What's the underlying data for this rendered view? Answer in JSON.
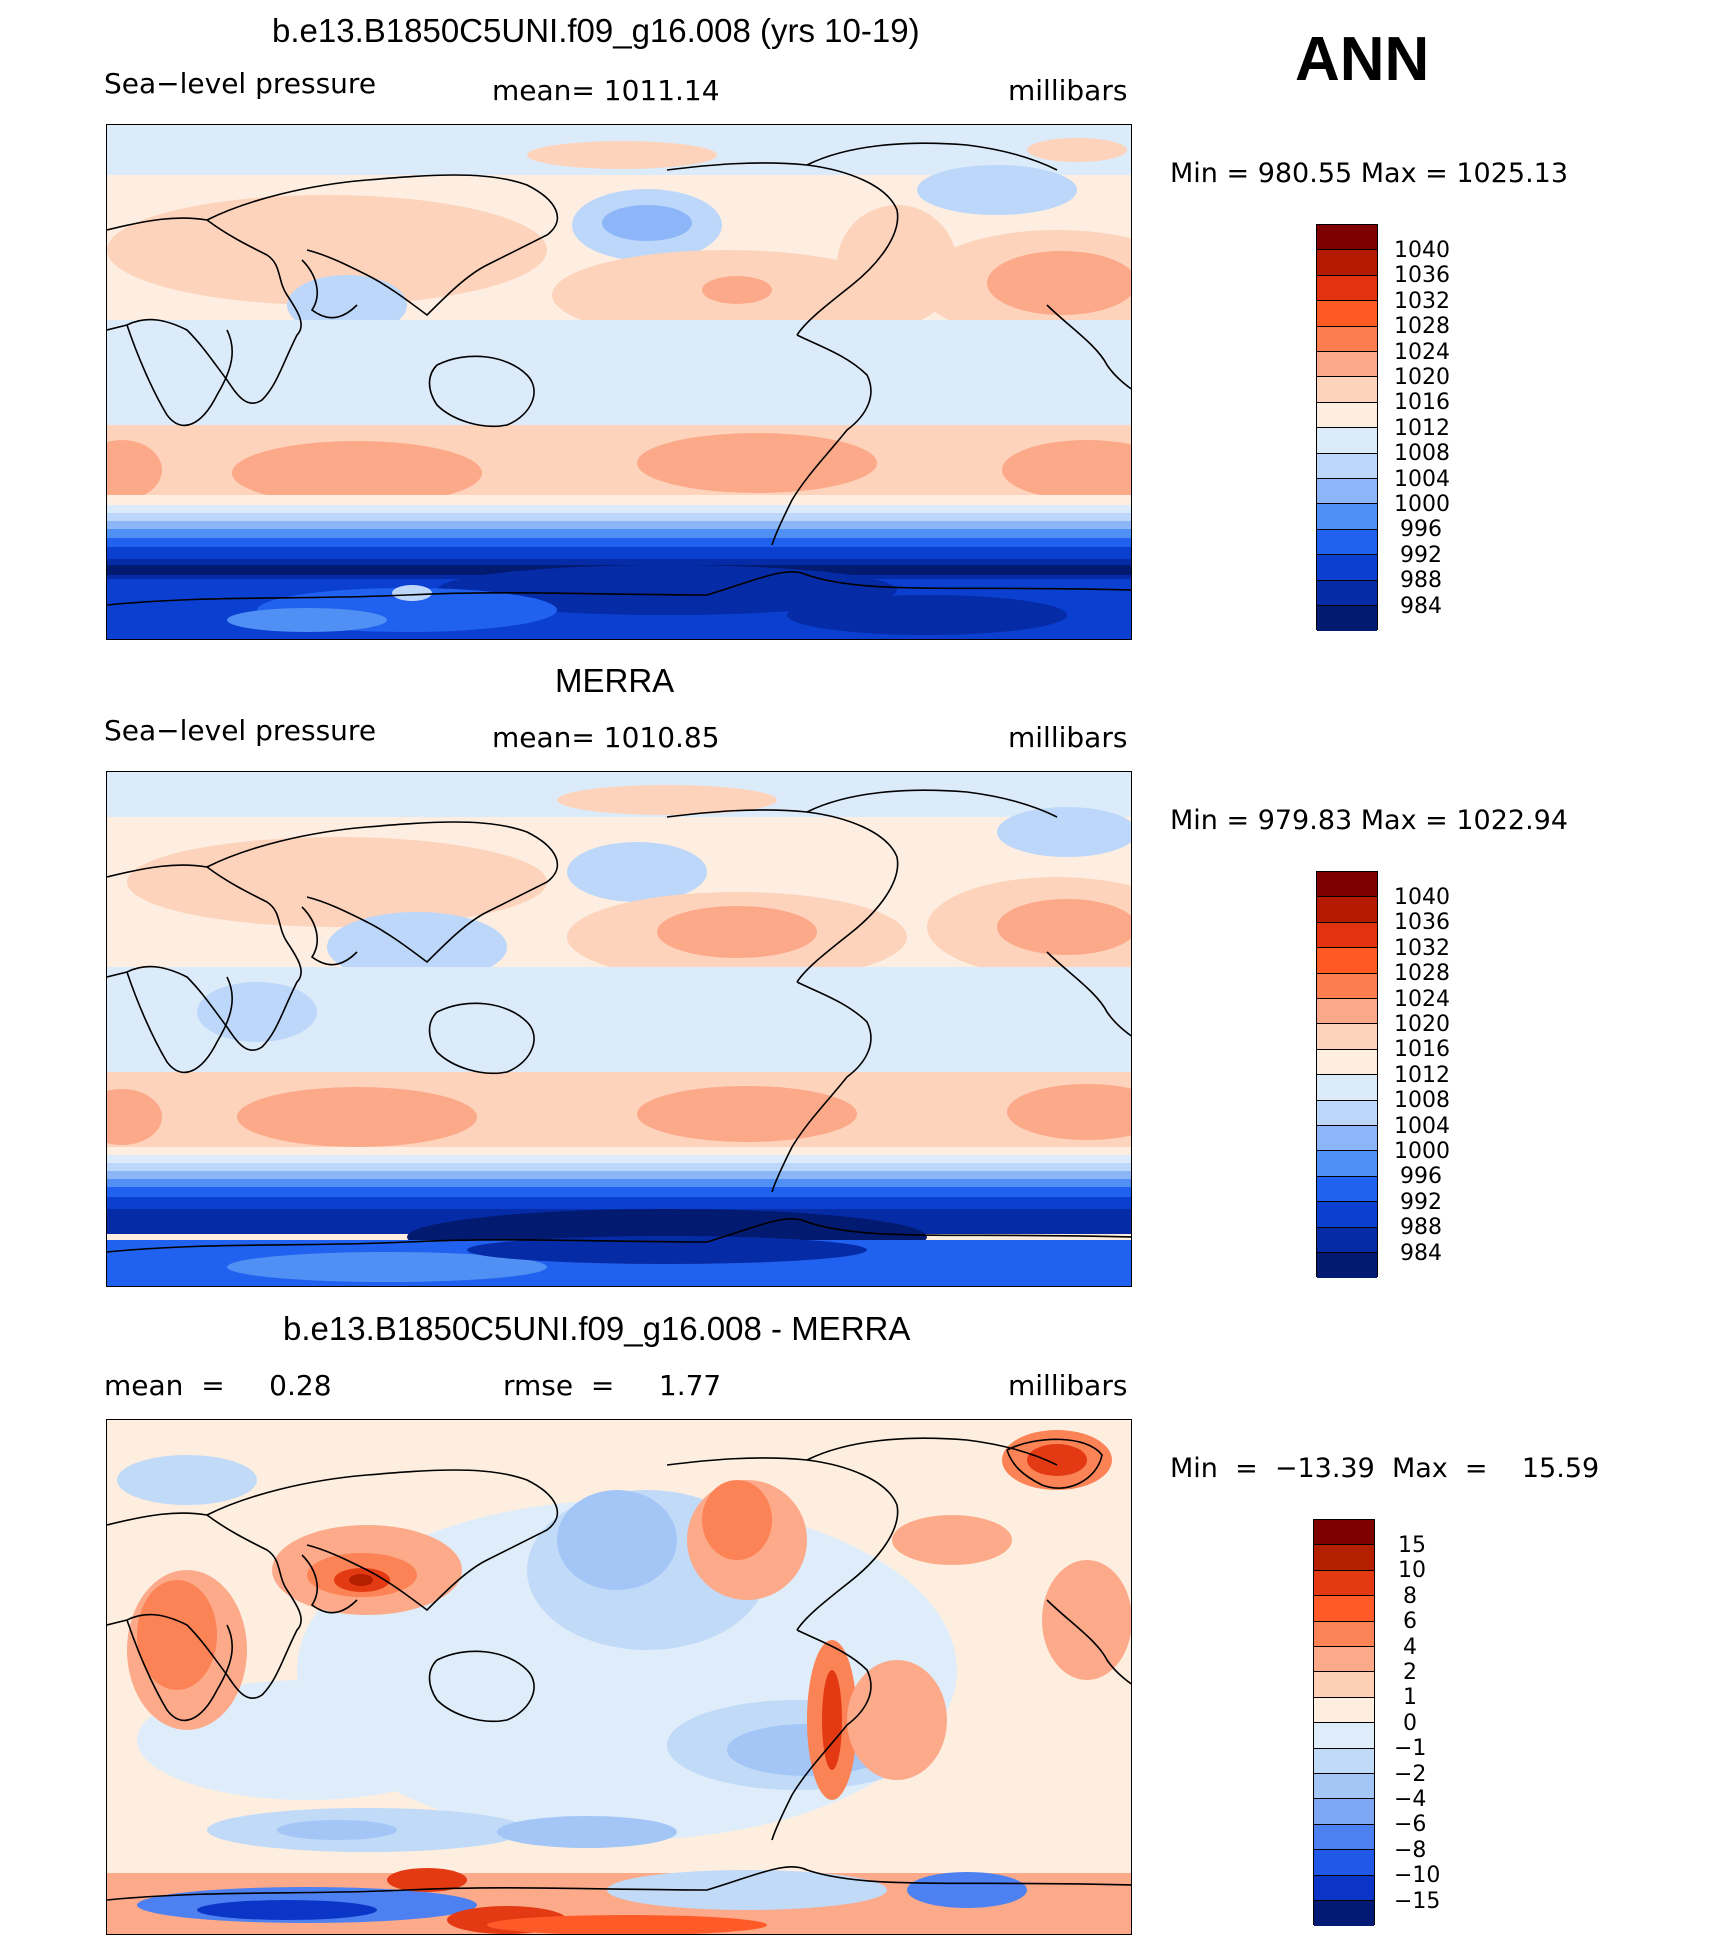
{
  "season": "ANN",
  "panels": [
    {
      "title": "b.e13.B1850C5UNI.f09_g16.008 (yrs 10-19)",
      "left_label": "Sea−level pressure",
      "center_label": "mean=  1011.14",
      "right_label": "millibars",
      "minmax": "Min  =  980.55  Max  =  1025.13",
      "colorbar_labels": [
        "1040",
        "1036",
        "1032",
        "1028",
        "1024",
        "1020",
        "1016",
        "1012",
        "1008",
        "1004",
        "1000",
        "996",
        "992",
        "988",
        "984"
      ]
    },
    {
      "title": "MERRA",
      "left_label": "Sea−level pressure",
      "center_label": "mean=  1010.85",
      "right_label": "millibars",
      "minmax": "Min  =  979.83  Max  =  1022.94",
      "colorbar_labels": [
        "1040",
        "1036",
        "1032",
        "1028",
        "1024",
        "1020",
        "1016",
        "1012",
        "1008",
        "1004",
        "1000",
        "996",
        "992",
        "988",
        "984"
      ]
    },
    {
      "title": "b.e13.B1850C5UNI.f09_g16.008 - MERRA",
      "left_label": "mean  =     0.28",
      "center_label": "rmse  =     1.77",
      "right_label": "millibars",
      "minmax": "Min  =  −13.39  Max  =    15.59",
      "colorbar_labels": [
        "15",
        "10",
        "8",
        "6",
        "4",
        "2",
        "1",
        "0",
        "−1",
        "−2",
        "−4",
        "−6",
        "−8",
        "−10",
        "−15"
      ]
    }
  ],
  "colors": {
    "abs_scale": [
      "#7f0000",
      "#b31a00",
      "#e23210",
      "#ff5a22",
      "#fb7d50",
      "#fca98a",
      "#fdd3bc",
      "#fdeee1",
      "#dcebfa",
      "#bcd7f9",
      "#8cb6f7",
      "#5090f4",
      "#2161f0",
      "#0a3fd0",
      "#052ba6",
      "#021a70"
    ],
    "diff_scale": [
      "#7f0000",
      "#b41f00",
      "#e33a14",
      "#ff5a28",
      "#fb8356",
      "#fcaa8a",
      "#fdcfb5",
      "#fdeee0",
      "#deedf9",
      "#c0daf8",
      "#a3c6f7",
      "#7ea7f5",
      "#4d81f1",
      "#2158e7",
      "#0b35c6",
      "#021a74"
    ],
    "continent_line": "#000000"
  }
}
